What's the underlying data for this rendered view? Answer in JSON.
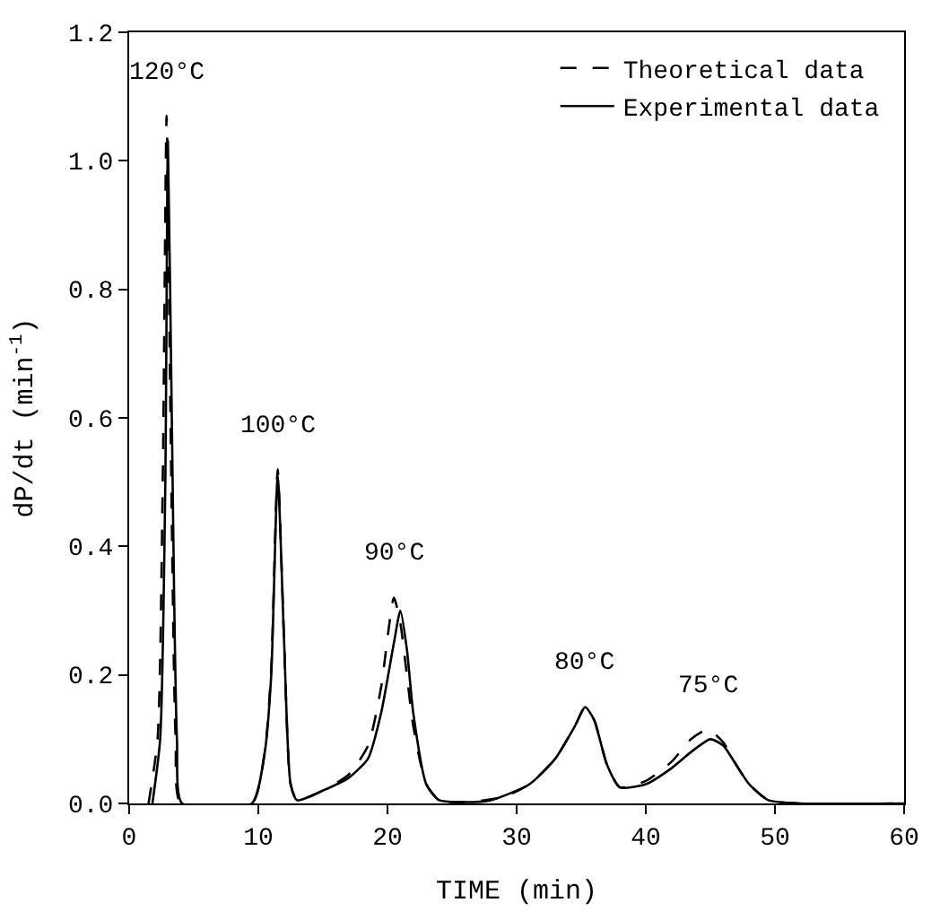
{
  "chart_data": {
    "type": "line",
    "xlabel": "TIME (min)",
    "ylabel": "dP/dt (min$^{-1}$)",
    "xlim": [
      0,
      60
    ],
    "ylim": [
      0,
      1.2
    ],
    "xticks": [
      0,
      10,
      20,
      30,
      40,
      50,
      60
    ],
    "yticks": [
      {
        "value": 0,
        "label": "0.0"
      },
      {
        "value": 0.2,
        "label": "0.2"
      },
      {
        "value": 0.4,
        "label": "0.4"
      },
      {
        "value": 0.6,
        "label": "0.6"
      },
      {
        "value": 0.8,
        "label": "0.8"
      },
      {
        "value": 1.0,
        "label": "1.0"
      },
      {
        "value": 1.2,
        "label": "1.2"
      }
    ],
    "legend": "top right",
    "marker": "none",
    "series": [
      {
        "name": "Theoretical data",
        "color": "#000000",
        "line_style": "dashed",
        "x": [
          1.5,
          2.2,
          2.6,
          2.9,
          3.2,
          3.6,
          4,
          9.5,
          10.5,
          11,
          11.5,
          12,
          12.5,
          13,
          15,
          17,
          18.5,
          19.5,
          20.5,
          21,
          21.5,
          22,
          23,
          24,
          26,
          29,
          31,
          33,
          34.5,
          35.3,
          36,
          37,
          38,
          40,
          42,
          43.5,
          44.8,
          46,
          47,
          48,
          49.5,
          52,
          60
        ],
        "values": [
          0,
          0.1,
          0.5,
          1.07,
          0.6,
          0.1,
          0,
          0,
          0.08,
          0.21,
          0.52,
          0.25,
          0.03,
          0.005,
          0.02,
          0.045,
          0.09,
          0.18,
          0.32,
          0.28,
          0.2,
          0.12,
          0.03,
          0.005,
          0.002,
          0.01,
          0.03,
          0.07,
          0.12,
          0.15,
          0.13,
          0.06,
          0.025,
          0.035,
          0.065,
          0.1,
          0.115,
          0.095,
          0.06,
          0.03,
          0.005,
          0,
          0
        ]
      },
      {
        "name": "Experimental data",
        "color": "#000000",
        "line_style": "solid",
        "x": [
          1.8,
          2.4,
          2.8,
          3.0,
          3.3,
          3.7,
          4.1,
          9.5,
          10.5,
          11,
          11.5,
          12,
          12.5,
          13,
          15,
          17,
          18.5,
          19.5,
          20.5,
          21,
          21.5,
          22,
          23,
          24,
          26,
          28,
          31,
          33,
          34.5,
          35.3,
          36,
          37,
          38,
          40,
          42,
          43.5,
          45,
          46,
          47,
          48,
          49.5,
          52,
          60
        ],
        "values": [
          0,
          0.1,
          0.5,
          1.03,
          0.6,
          0.1,
          0,
          0,
          0.08,
          0.2,
          0.51,
          0.25,
          0.03,
          0.005,
          0.02,
          0.04,
          0.07,
          0.14,
          0.25,
          0.3,
          0.24,
          0.14,
          0.03,
          0.005,
          0.002,
          0.005,
          0.03,
          0.07,
          0.12,
          0.15,
          0.13,
          0.06,
          0.025,
          0.03,
          0.055,
          0.08,
          0.1,
          0.09,
          0.06,
          0.03,
          0.005,
          0,
          0
        ]
      }
    ],
    "annotations": [
      "120°C",
      "100°C",
      "90°C",
      "80°C",
      "75°C"
    ]
  }
}
